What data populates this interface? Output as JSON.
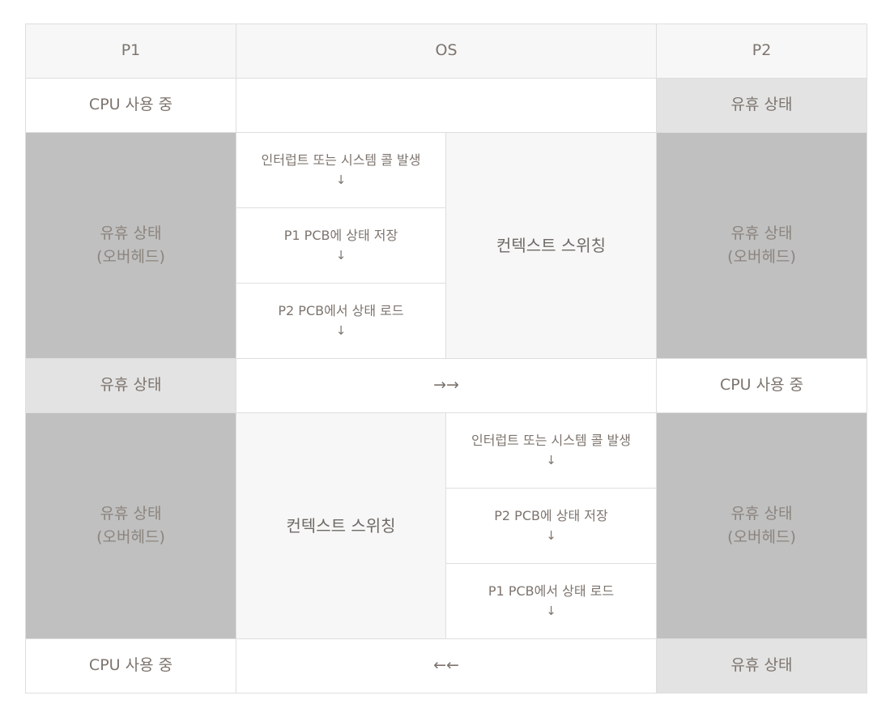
{
  "header": {
    "p1": "P1",
    "os": "OS",
    "p2": "P2"
  },
  "row1": {
    "p1": "CPU 사용 중",
    "p2": "유휴 상태"
  },
  "switch1": {
    "p1_line1": "유휴 상태",
    "p1_line2": "(오버헤드)",
    "steps": [
      {
        "text": "인터럽트 또는 시스템 콜 발생",
        "arrow": "↓"
      },
      {
        "text": "P1 PCB에 상태 저장",
        "arrow": "↓"
      },
      {
        "text": "P2 PCB에서 상태 로드",
        "arrow": "↓"
      }
    ],
    "label": "컨텍스트 스위칭",
    "p2_line1": "유휴 상태",
    "p2_line2": "(오버헤드)"
  },
  "row2": {
    "p1": "유휴 상태",
    "os": "→→",
    "p2": "CPU 사용 중"
  },
  "switch2": {
    "p1_line1": "유휴 상태",
    "p1_line2": "(오버헤드)",
    "label": "컨텍스트 스위칭",
    "steps": [
      {
        "text": "인터럽트 또는 시스템 콜 발생",
        "arrow": "↓"
      },
      {
        "text": "P2 PCB에 상태 저장",
        "arrow": "↓"
      },
      {
        "text": "P1 PCB에서 상태 로드",
        "arrow": "↓"
      }
    ],
    "p2_line1": "유휴 상태",
    "p2_line2": "(오버헤드)"
  },
  "row3": {
    "p1": "CPU 사용 중",
    "os": "←←",
    "p2": "유휴 상태"
  },
  "colors": {
    "border": "#dedede",
    "header_bg": "#f7f7f7",
    "idle_light": "#e3e3e3",
    "idle_overhead": "#c0c0c0",
    "text": "#7d746e"
  }
}
